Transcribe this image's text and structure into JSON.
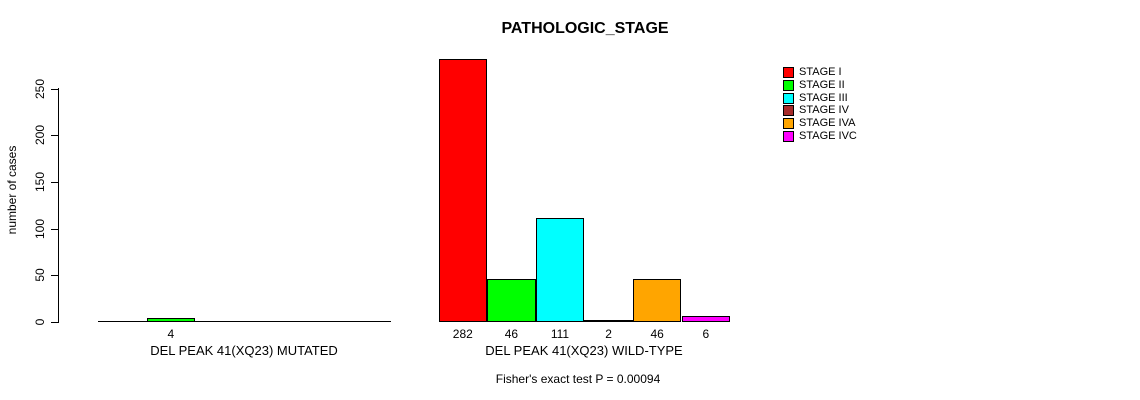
{
  "chart_data": {
    "type": "bar",
    "title": "PATHOLOGIC_STAGE",
    "ylabel": "number of cases",
    "footnote": "Fisher's exact test P = 0.00094",
    "yticks": [
      0,
      50,
      100,
      150,
      200,
      250
    ],
    "ylim": [
      0,
      285
    ],
    "grid": false,
    "legend_position": "top-right",
    "categories": [
      "DEL PEAK 41(XQ23) MUTATED",
      "DEL PEAK 41(XQ23) WILD-TYPE"
    ],
    "series": [
      {
        "name": "STAGE I",
        "color": "#FF0000",
        "values": [
          0,
          282
        ]
      },
      {
        "name": "STAGE II",
        "color": "#00FF00",
        "values": [
          4,
          46
        ]
      },
      {
        "name": "STAGE III",
        "color": "#00FFFF",
        "values": [
          0,
          111
        ]
      },
      {
        "name": "STAGE IV",
        "color": "#A52A2A",
        "values": [
          0,
          2
        ]
      },
      {
        "name": "STAGE IVA",
        "color": "#FFA500",
        "values": [
          0,
          46
        ]
      },
      {
        "name": "STAGE IVC",
        "color": "#FF00FF",
        "values": [
          0,
          6
        ]
      }
    ],
    "bar_value_labels": {
      "group_1": [
        "4"
      ],
      "group_2": [
        "282",
        "46",
        "111",
        "2",
        "46",
        "6"
      ]
    }
  }
}
